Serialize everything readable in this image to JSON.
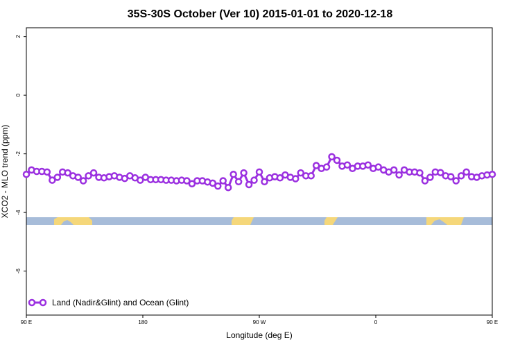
{
  "chart_data": {
    "type": "line",
    "title": "35S-30S October (Ver 10)   2015-01-01 to 2020-12-18",
    "xlabel": "Longitude (deg E)",
    "ylabel": "XCO2 - MLO trend (ppm)",
    "xlim": [
      90,
      450
    ],
    "ylim": [
      -7.5,
      2.3
    ],
    "xticks": [
      {
        "value": 90,
        "label": "90 E"
      },
      {
        "value": 180,
        "label": "180"
      },
      {
        "value": 270,
        "label": "90 W"
      },
      {
        "value": 360,
        "label": "0"
      },
      {
        "value": 450,
        "label": "90 E"
      },
      {
        "value": 540,
        "label": "180"
      }
    ],
    "yticks": [
      {
        "value": 2,
        "label": "2"
      },
      {
        "value": 0,
        "label": "0"
      },
      {
        "value": -2,
        "label": "-2"
      },
      {
        "value": -4,
        "label": "-4"
      },
      {
        "value": -6,
        "label": "-6"
      }
    ],
    "grid": false,
    "legend_position": "bottom-left",
    "series": [
      {
        "name": "Land (Nadir&Glint) and Ocean (Glint)",
        "color": "#9b30e0",
        "x": [
          90,
          94,
          98,
          102,
          106,
          110,
          114,
          118,
          122,
          126,
          130,
          134,
          138,
          142,
          146,
          150,
          154,
          158,
          162,
          166,
          170,
          174,
          178,
          182,
          186,
          190,
          194,
          198,
          202,
          206,
          210,
          214,
          218,
          222,
          226,
          230,
          234,
          238,
          242,
          246,
          250,
          254,
          258,
          262,
          266,
          270,
          274,
          278,
          282,
          286,
          290,
          294,
          298,
          302,
          306,
          310,
          314,
          318,
          322,
          326,
          330,
          334,
          338,
          342,
          346,
          350,
          354,
          358,
          362,
          366,
          370,
          374,
          378,
          382,
          386,
          390,
          394,
          398,
          402,
          406,
          410,
          414,
          418,
          422,
          426,
          430,
          434,
          438,
          442,
          446,
          450
        ],
        "y": [
          -2.7,
          -2.55,
          -2.6,
          -2.6,
          -2.62,
          -2.9,
          -2.8,
          -2.62,
          -2.65,
          -2.75,
          -2.8,
          -2.92,
          -2.75,
          -2.65,
          -2.8,
          -2.82,
          -2.78,
          -2.75,
          -2.8,
          -2.84,
          -2.75,
          -2.82,
          -2.9,
          -2.8,
          -2.88,
          -2.88,
          -2.88,
          -2.9,
          -2.9,
          -2.92,
          -2.9,
          -2.92,
          -3.02,
          -2.92,
          -2.92,
          -2.96,
          -3.0,
          -3.1,
          -2.92,
          -3.15,
          -2.7,
          -2.95,
          -2.65,
          -3.05,
          -2.9,
          -2.62,
          -2.95,
          -2.82,
          -2.78,
          -2.82,
          -2.72,
          -2.8,
          -2.85,
          -2.65,
          -2.75,
          -2.75,
          -2.4,
          -2.5,
          -2.45,
          -2.1,
          -2.22,
          -2.42,
          -2.38,
          -2.5,
          -2.42,
          -2.42,
          -2.38,
          -2.5,
          -2.45,
          -2.55,
          -2.62,
          -2.55,
          -2.72,
          -2.55,
          -2.62,
          -2.62,
          -2.65,
          -2.92,
          -2.8,
          -2.62,
          -2.64,
          -2.75,
          -2.78,
          -2.92,
          -2.75,
          -2.62,
          -2.78,
          -2.8,
          -2.75,
          -2.72,
          -2.7
        ]
      }
    ]
  }
}
